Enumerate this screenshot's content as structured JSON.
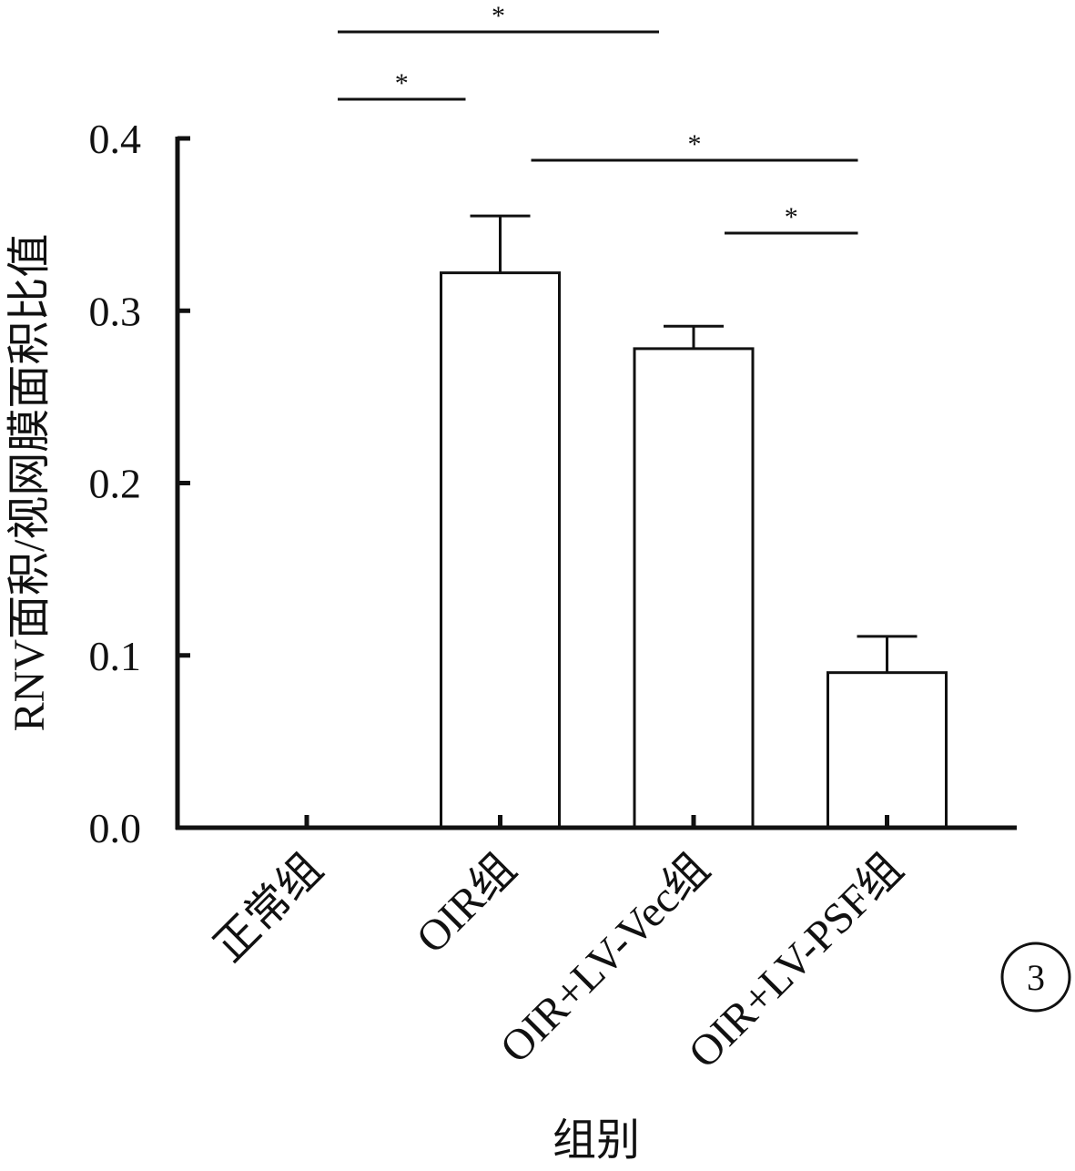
{
  "chart_data": {
    "type": "bar",
    "xlabel": "组别",
    "ylabel": "RNV面积/视网膜面积比值",
    "ylim": [
      0,
      0.4
    ],
    "yticks": [
      "0.0",
      "0.1",
      "0.2",
      "0.3",
      "0.4"
    ],
    "categories": [
      "正常组",
      "OIR组",
      "OIR+LV-Vec组",
      "OIR+LV-PSF组"
    ],
    "values": [
      0.0,
      0.322,
      0.278,
      0.09
    ],
    "errors": [
      0.0,
      0.033,
      0.013,
      0.021
    ],
    "significance": [
      {
        "from": 0,
        "to": 2,
        "label": "*"
      },
      {
        "from": 0,
        "to": 1,
        "label": "*"
      },
      {
        "from": 1,
        "to": 3,
        "label": "*"
      },
      {
        "from": 2,
        "to": 3,
        "label": "*"
      }
    ],
    "bar_color": "#ffffff",
    "line_color": "#111111"
  },
  "panel_number": "3"
}
